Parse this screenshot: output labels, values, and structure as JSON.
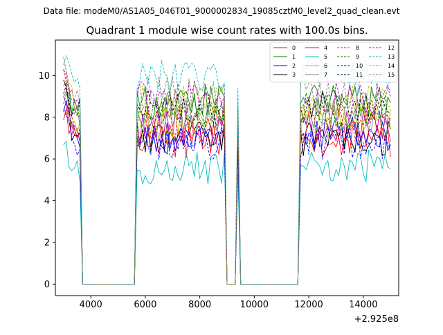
{
  "chart_data": {
    "type": "line",
    "suptitle": "Data file: modeM0/AS1A05_046T01_9000002834_19085cztM0_level2_quad_clean.evt",
    "title": "Quadrant 1 module wise count rates with 100.0s bins.",
    "xlabel": "",
    "ylabel": "",
    "x_offset_label": "+2.925e8",
    "xlim": [
      2700,
      15300
    ],
    "ylim": [
      -0.55,
      11.7
    ],
    "xticks": [
      4000,
      6000,
      8000,
      10000,
      12000,
      14000
    ],
    "yticks": [
      0,
      2,
      4,
      6,
      8,
      10
    ],
    "grid": false,
    "legend_location": "top-right",
    "time_segments": [
      [
        3000,
        3600
      ],
      [
        3700,
        5600
      ],
      [
        5700,
        8900
      ],
      [
        8950,
        9300
      ],
      [
        9400,
        9420
      ],
      [
        9450,
        11600
      ],
      [
        11700,
        15000
      ]
    ],
    "series": [
      {
        "name": "0",
        "color": "#ff0000",
        "dash": "solid",
        "level": 6.9,
        "start": 8.3
      },
      {
        "name": "1",
        "color": "#008000",
        "dash": "solid",
        "level": 8.7,
        "start": 9.4
      },
      {
        "name": "2",
        "color": "#0000ff",
        "dash": "solid",
        "level": 7.2,
        "start": 8.8
      },
      {
        "name": "3",
        "color": "#000000",
        "dash": "solid",
        "level": 7.0,
        "start": 9.8
      },
      {
        "name": "4",
        "color": "#c000c0",
        "dash": "solid",
        "level": 7.5,
        "start": 8.5
      },
      {
        "name": "5",
        "color": "#00bfbf",
        "dash": "solid",
        "level": 5.6,
        "start": 6.8
      },
      {
        "name": "6",
        "color": "#bfbf00",
        "dash": "solid",
        "level": 7.8,
        "start": 8.0
      },
      {
        "name": "7",
        "color": "#808080",
        "dash": "solid",
        "level": 8.2,
        "start": 9.2
      },
      {
        "name": "8",
        "color": "#ff0000",
        "dash": "dashed",
        "level": 7.6,
        "start": 10.0
      },
      {
        "name": "9",
        "color": "#008000",
        "dash": "dashed",
        "level": 8.4,
        "start": 9.0
      },
      {
        "name": "10",
        "color": "#0000ff",
        "dash": "dashed",
        "level": 6.8,
        "start": 8.2
      },
      {
        "name": "11",
        "color": "#000000",
        "dash": "dashed",
        "level": 8.5,
        "start": 9.6
      },
      {
        "name": "12",
        "color": "#c000c0",
        "dash": "dashed",
        "level": 8.9,
        "start": 10.2
      },
      {
        "name": "13",
        "color": "#00bfbf",
        "dash": "dashed",
        "level": 9.9,
        "start": 11.1
      },
      {
        "name": "14",
        "color": "#bfbf00",
        "dash": "dashed",
        "level": 8.7,
        "start": 10.6
      },
      {
        "name": "15",
        "color": "#808080",
        "dash": "dashed",
        "level": 9.2,
        "start": 10.4
      }
    ]
  }
}
